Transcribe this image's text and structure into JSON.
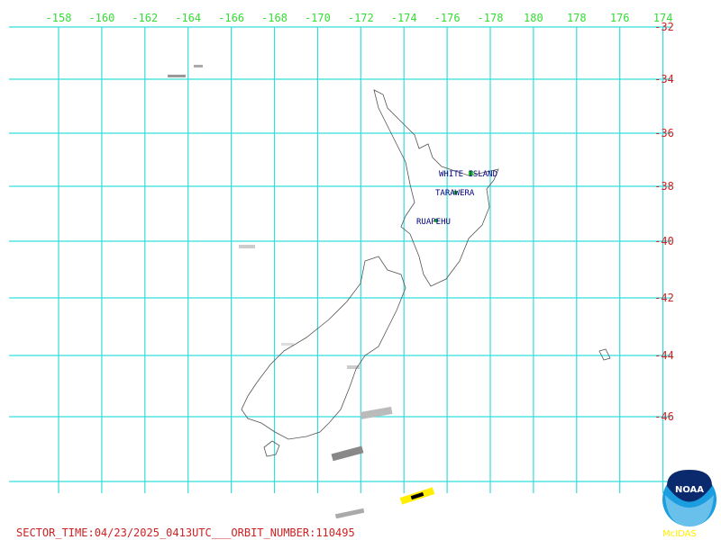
{
  "map": {
    "lon_labels": [
      "-158",
      "-160",
      "-162",
      "-164",
      "-166",
      "-168",
      "-170",
      "-172",
      "-174",
      "-176",
      "-178",
      "180",
      "178",
      "176",
      "174"
    ],
    "lat_labels": [
      "-32",
      "-34",
      "-36",
      "-38",
      "-40",
      "-42",
      "-44",
      "-46"
    ],
    "volcanoes": [
      "WHITE ISLAND",
      "TARAWERA",
      "RUAPEHU"
    ],
    "footer": "SECTOR_TIME:04/23/2025_0413UTC___ORBIT_NUMBER:110495",
    "logo": {
      "name": "NOAA",
      "caption": "McIDAS"
    }
  }
}
